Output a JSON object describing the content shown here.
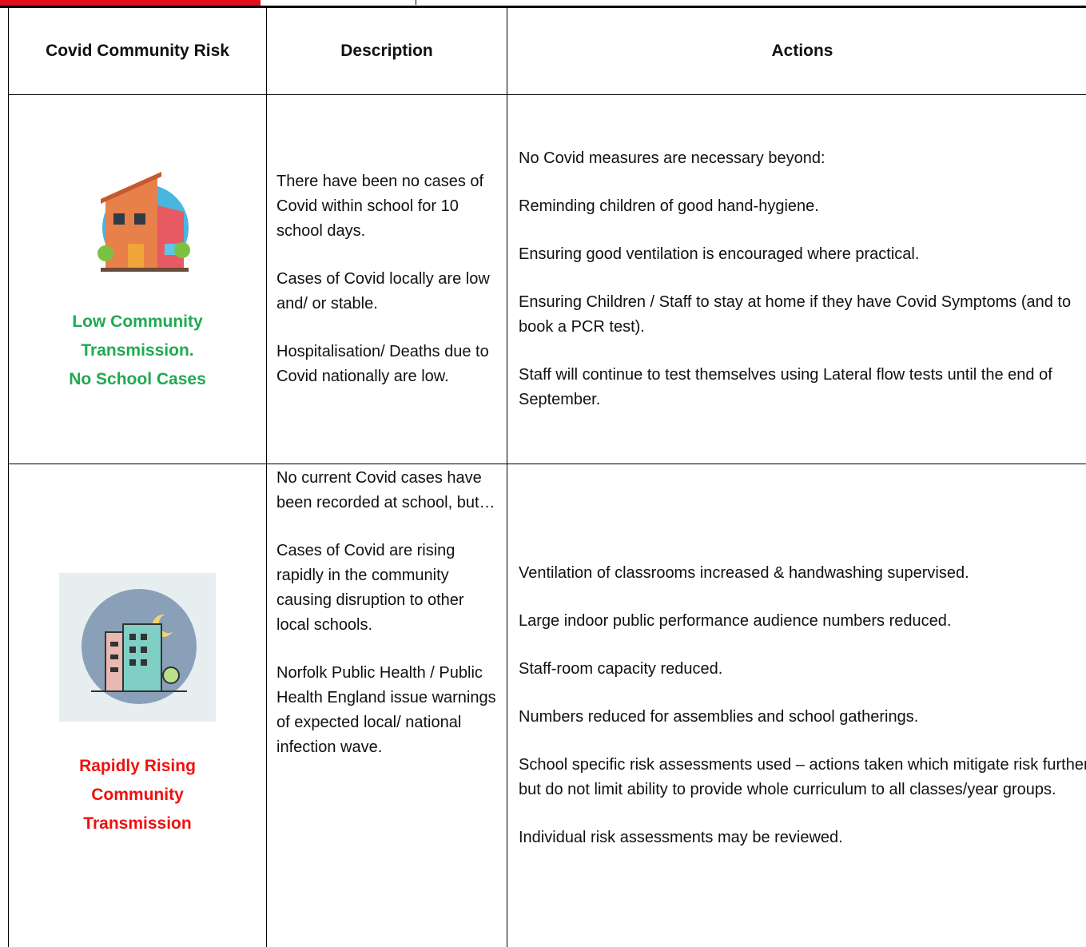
{
  "header": {
    "columns": [
      "Covid Community Risk",
      "Description",
      "Actions"
    ]
  },
  "rows": [
    {
      "risk": [
        "Low Community",
        "Transmission.",
        "No School Cases"
      ],
      "description": [
        "There have been no cases of Covid within school for 10 school days.",
        "Cases of Covid locally are low and/ or stable.",
        "Hospitalisation/ Deaths due to Covid nationally are low."
      ],
      "actions": [
        "No Covid measures are necessary beyond:",
        "Reminding children of good hand-hygiene.",
        "Ensuring good ventilation is encouraged where practical.",
        "Ensuring Children / Staff to stay at home if they have Covid Symptoms (and to book a PCR test).",
        "Staff will continue to test themselves using Lateral flow tests until the end of September."
      ]
    },
    {
      "risk": [
        "Rapidly Rising",
        "Community",
        "Transmission"
      ],
      "description": [
        "No current Covid cases have been recorded at school, but…",
        "Cases of Covid are rising rapidly in the community causing disruption to other local schools.",
        "Norfolk Public Health / Public Health England issue warnings of expected local/ national infection wave."
      ],
      "actions": [
        "Ventilation of classrooms increased & handwashing supervised.",
        "Large indoor public performance audience numbers reduced.",
        "Staff-room capacity reduced.",
        "Numbers reduced for assemblies and school gatherings.",
        "School specific risk assessments used – actions taken which mitigate risk further but do not limit ability to provide whole curriculum to all classes/year groups.",
        "Individual risk assessments may be reviewed."
      ]
    }
  ]
}
